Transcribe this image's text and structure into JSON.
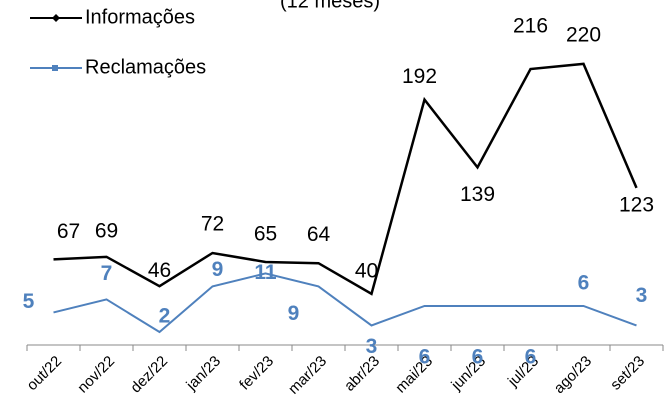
{
  "chart_data": {
    "type": "line",
    "subtitle": "(12 meses)",
    "categories": [
      "out/22",
      "nov/22",
      "dez/22",
      "jan/23",
      "fev/23",
      "mar/23",
      "abr/23",
      "mai/23",
      "jun/23",
      "jul/23",
      "ago/23",
      "set/23"
    ],
    "series": [
      {
        "name": "Informações",
        "color": "#000000",
        "values": [
          67,
          69,
          46,
          72,
          65,
          64,
          40,
          192,
          139,
          216,
          220,
          123
        ]
      },
      {
        "name": "Reclamações",
        "color": "#4f81bd",
        "axis": "y2",
        "values": [
          5,
          7,
          2,
          9,
          11,
          9,
          3,
          6,
          6,
          6,
          6,
          3
        ]
      }
    ],
    "ylim": [
      0,
      270
    ],
    "y2lim": [
      0,
      53
    ],
    "legend": "top-left"
  }
}
